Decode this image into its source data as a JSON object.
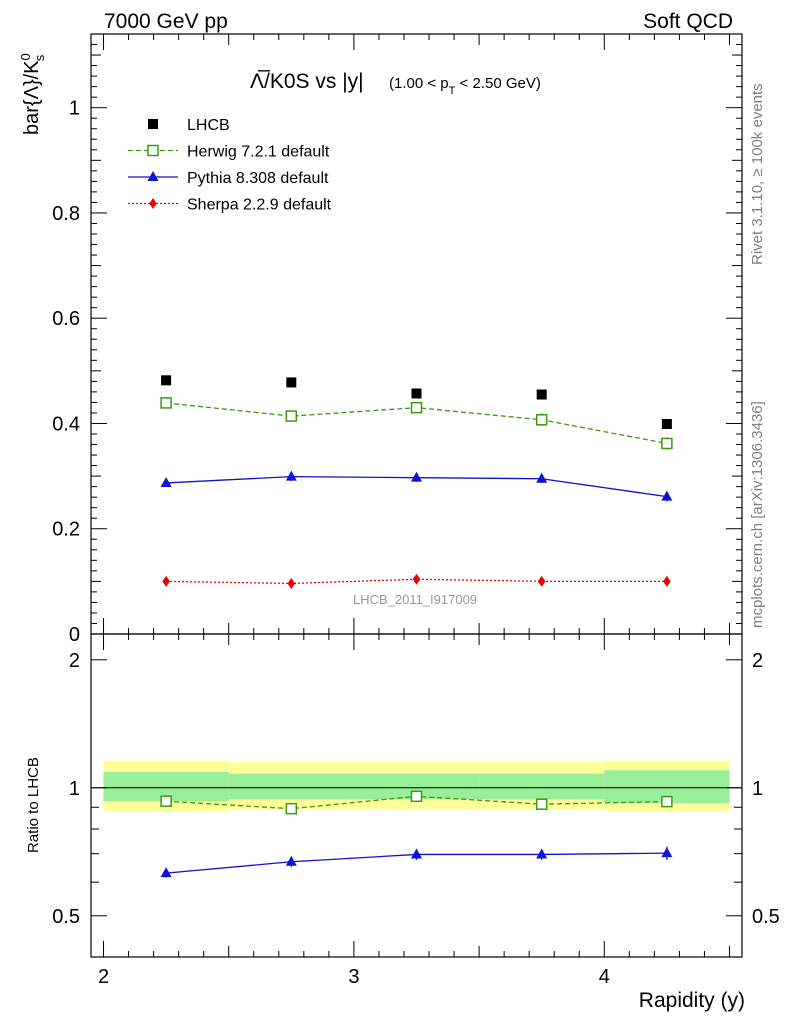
{
  "header": {
    "left": "7000 GeV pp",
    "right": "Soft QCD"
  },
  "side_labels": {
    "rivet": "Rivet 3.1.10, ≥ 100k events",
    "mcplots": "mcplots.cern.ch [arXiv:1306.3436]"
  },
  "watermark": "LHCB_2011_I917009",
  "chart_data": {
    "type": "scatter",
    "title_main": "Λ̅/K0S vs |y|",
    "title_cut": "(1.00 < p",
    "title_cut_sub": "T",
    "title_cut_end": " < 2.50 GeV)",
    "ylabel_top": "bar{Λ}/K",
    "ylabel_top_sup": "0",
    "ylabel_top_sub": "s",
    "ylabel_bottom": "Ratio to LHCB",
    "xlabel": "Rapidity (y)",
    "xlim": [
      1.95,
      4.55
    ],
    "ylim": [
      0,
      1.14
    ],
    "ratio_ylim": [
      0.4,
      2.3
    ],
    "ratio_scale": "log",
    "x_ticks": [
      "2",
      "3",
      "4"
    ],
    "y_ticks": [
      "0",
      "0.2",
      "0.4",
      "0.6",
      "0.8",
      "1"
    ],
    "ratio_y_ticks": [
      "0.5",
      "1",
      "2"
    ],
    "x": [
      2.25,
      2.75,
      3.25,
      3.75,
      4.25
    ],
    "bin_edges": [
      2.0,
      2.5,
      3.0,
      3.5,
      4.0,
      4.5
    ],
    "legend_position": "top-left",
    "series": [
      {
        "name": "LHCB",
        "style": "data",
        "color": "#000000",
        "values": [
          0.482,
          0.478,
          0.457,
          0.455,
          0.399
        ],
        "errors": [
          0.004,
          0.004,
          0.004,
          0.004,
          0.004
        ]
      },
      {
        "name": "Herwig 7.2.1 default",
        "style": "herwig",
        "color": "#3a9a12",
        "values": [
          0.439,
          0.414,
          0.43,
          0.407,
          0.362
        ],
        "errors": [
          0.01,
          0.01,
          0.01,
          0.012,
          0.012
        ]
      },
      {
        "name": "Pythia 8.308 default",
        "style": "pythia",
        "color": "#1010d8",
        "values": [
          0.287,
          0.299,
          0.297,
          0.295,
          0.261
        ],
        "errors": [
          0.006,
          0.008,
          0.008,
          0.008,
          0.009
        ]
      },
      {
        "name": "Sherpa 2.2.9 default",
        "style": "sherpa",
        "color": "#ee0000",
        "values": [
          0.1,
          0.096,
          0.104,
          0.1,
          0.1
        ],
        "errors": [
          0.002,
          0.002,
          0.002,
          0.002,
          0.002
        ]
      }
    ],
    "ratio_series": [
      {
        "name": "Herwig 7.2.1 default",
        "style": "herwig",
        "color": "#3a9a12",
        "values": [
          0.93,
          0.893,
          0.955,
          0.915,
          0.928
        ],
        "errors": [
          0.02,
          0.02,
          0.022,
          0.024,
          0.026
        ]
      },
      {
        "name": "Pythia 8.308 default",
        "style": "pythia",
        "color": "#1010d8",
        "values": [
          0.63,
          0.67,
          0.697,
          0.697,
          0.702
        ],
        "errors": [
          0.015,
          0.018,
          0.02,
          0.02,
          0.025
        ]
      }
    ],
    "ratio_bands": {
      "inner_color": "#99ee99",
      "outer_color": "#ffff99",
      "inner": [
        [
          0.93,
          1.09
        ],
        [
          0.94,
          1.08
        ],
        [
          0.94,
          1.08
        ],
        [
          0.94,
          1.08
        ],
        [
          0.92,
          1.1
        ]
      ],
      "outer": [
        [
          0.88,
          1.16
        ],
        [
          0.89,
          1.15
        ],
        [
          0.89,
          1.15
        ],
        [
          0.89,
          1.15
        ],
        [
          0.88,
          1.16
        ]
      ]
    }
  }
}
